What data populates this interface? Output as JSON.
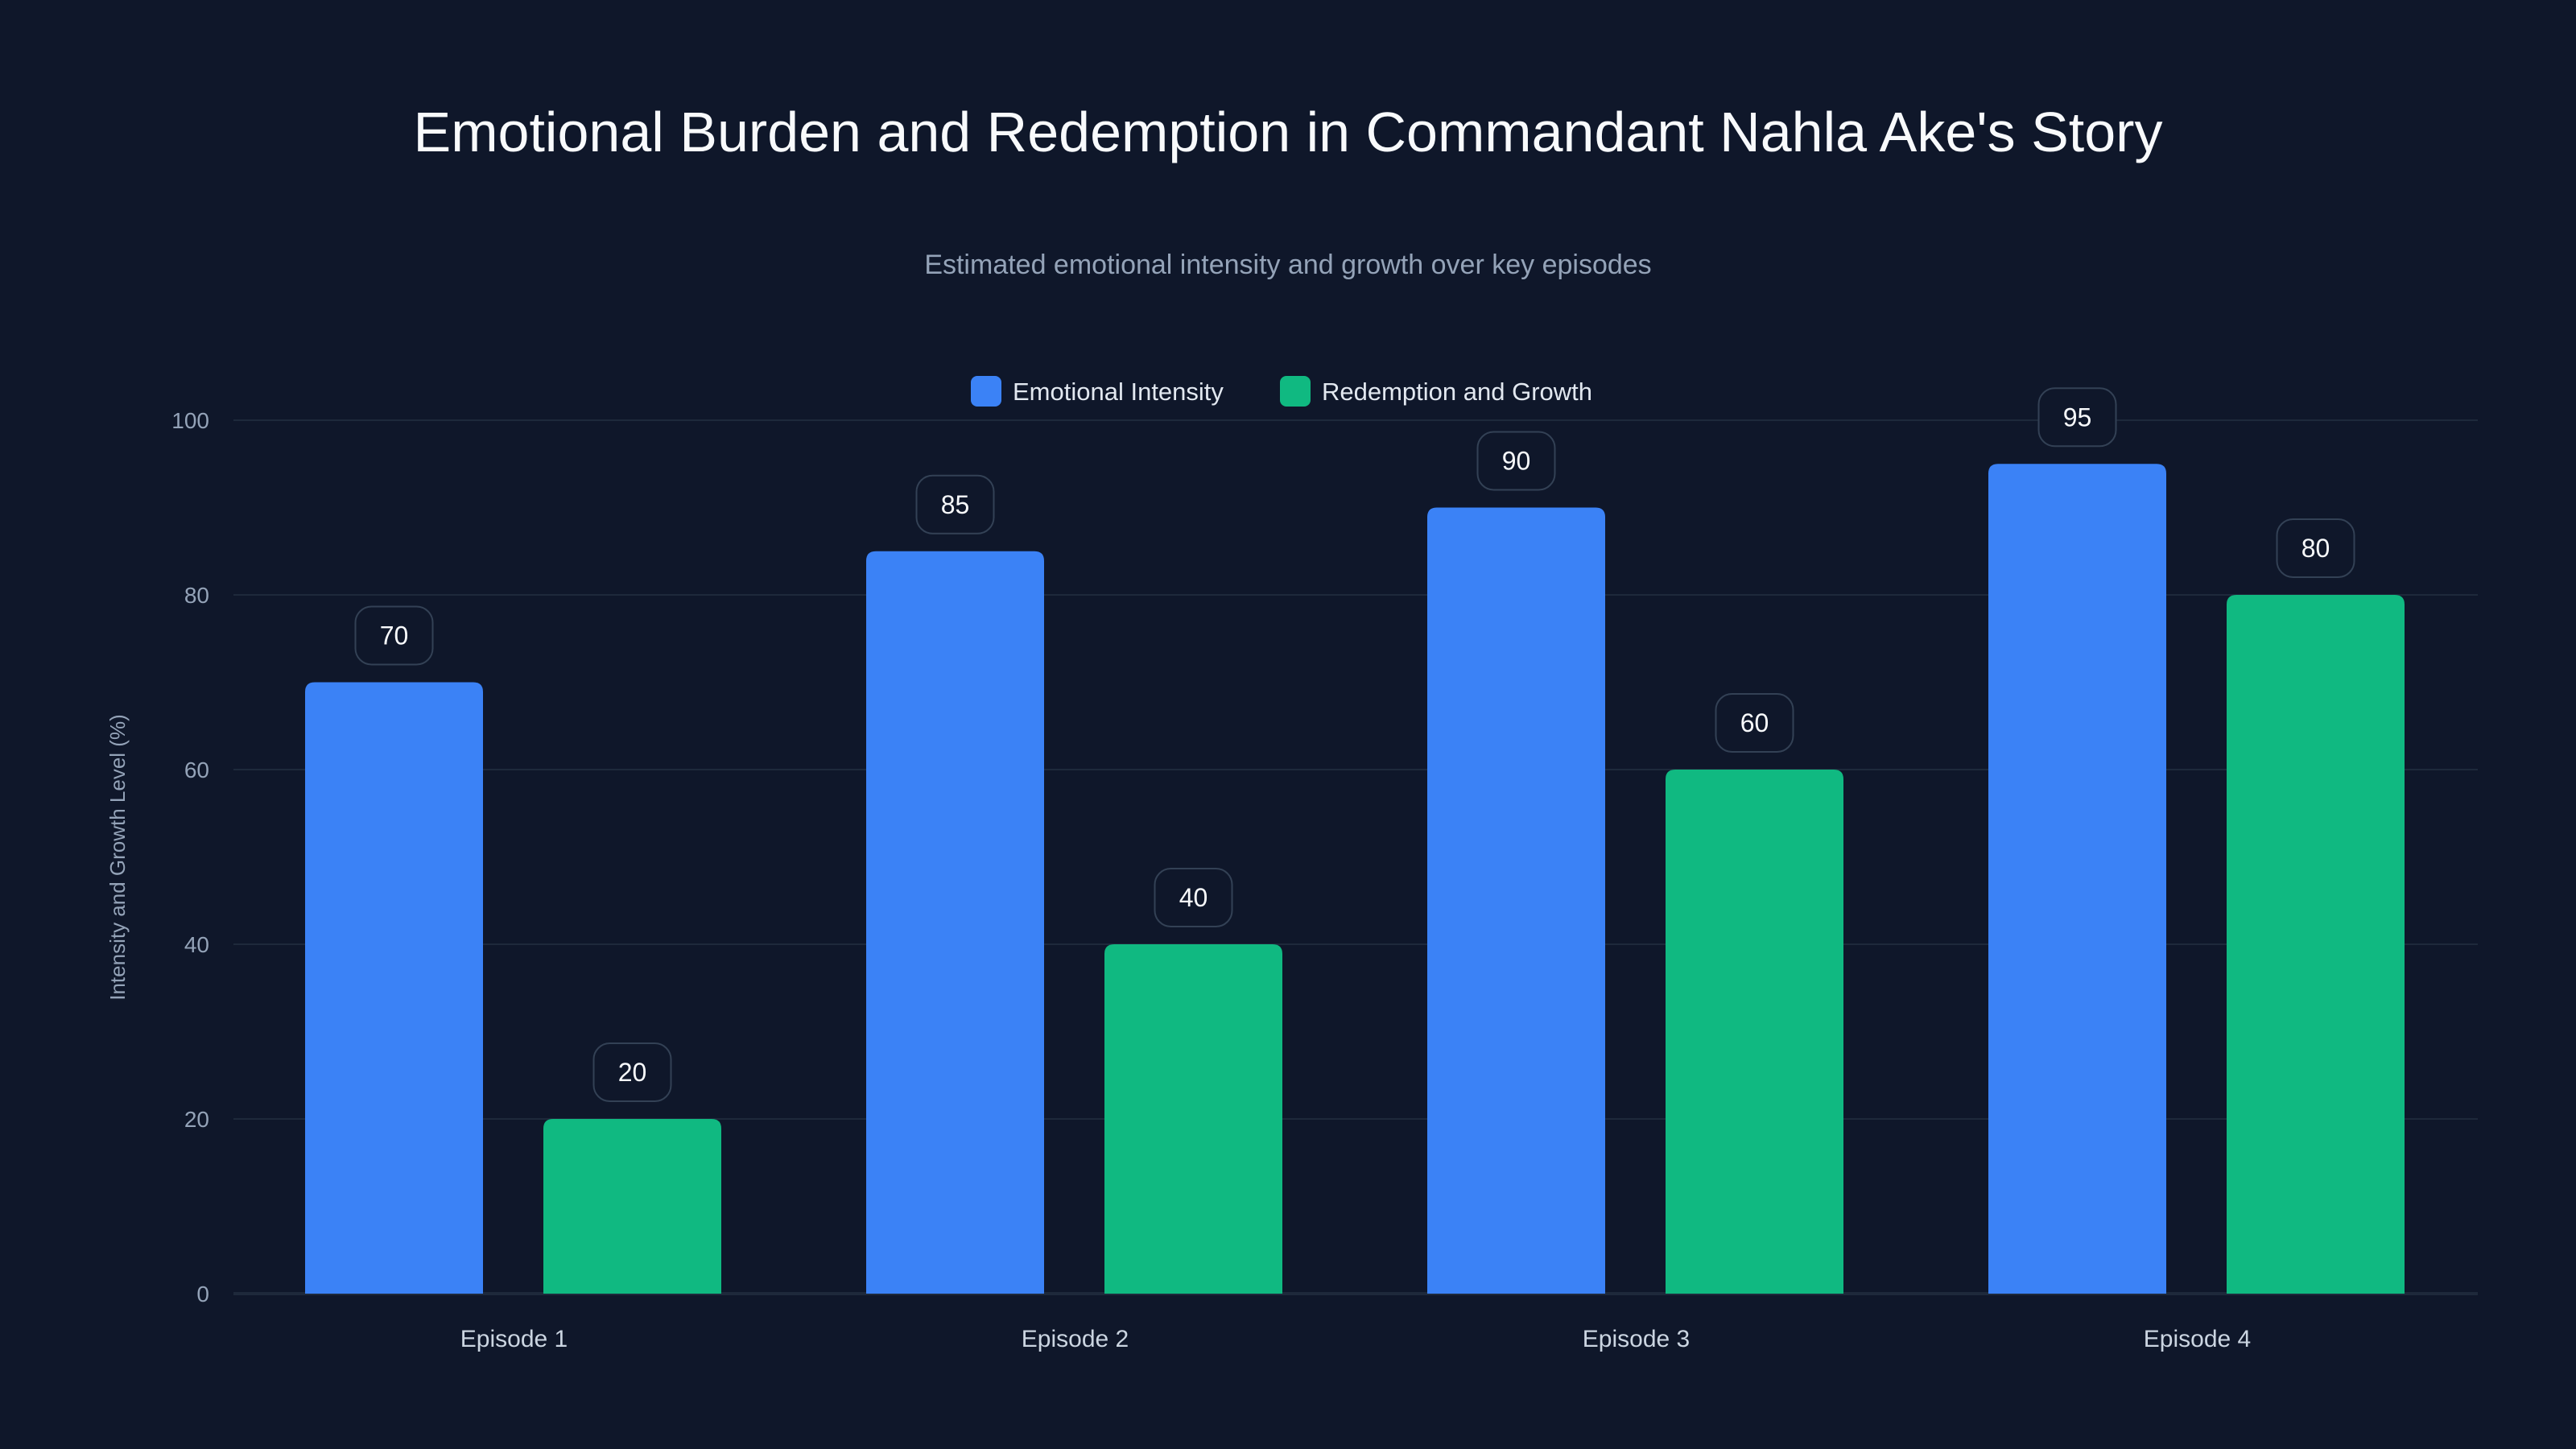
{
  "chart_data": {
    "type": "bar",
    "title": "Emotional Burden and Redemption in Commandant Nahla Ake's Story",
    "subtitle": "Estimated emotional intensity and growth over key episodes",
    "xlabel": "",
    "ylabel": "Intensity and Growth Level (%)",
    "ylim": [
      0,
      100
    ],
    "yticks": [
      0,
      20,
      40,
      60,
      80,
      100
    ],
    "grid": true,
    "legend_position": "top-center",
    "categories": [
      "Episode 1",
      "Episode 2",
      "Episode 3",
      "Episode 4"
    ],
    "series": [
      {
        "name": "Emotional Intensity",
        "color": "#3b82f6",
        "values": [
          70,
          85,
          90,
          95
        ]
      },
      {
        "name": "Redemption and Growth",
        "color": "#10b981",
        "values": [
          20,
          40,
          60,
          80
        ]
      }
    ]
  }
}
